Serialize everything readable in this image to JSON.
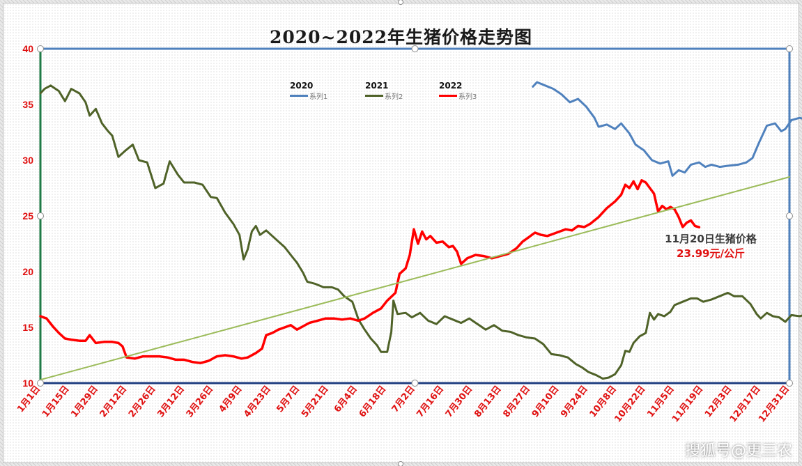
{
  "chart_data": {
    "type": "line",
    "title": "2020~2022年生猪价格走势图",
    "ylim": [
      10,
      40
    ],
    "y_ticks": [
      10,
      15,
      20,
      25,
      30,
      35,
      40
    ],
    "x_ticks": [
      "1月1日",
      "1月15日",
      "1月29日",
      "2月12日",
      "2月26日",
      "3月12日",
      "3月26日",
      "4月9日",
      "4月23日",
      "5月7日",
      "5月21日",
      "6月4日",
      "6月18日",
      "7月2日",
      "7月16日",
      "7月30日",
      "8月13日",
      "8月27日",
      "9月10日",
      "9月24日",
      "10月8日",
      "10月22日",
      "11月5日",
      "11月19日",
      "12月3日",
      "12月17日",
      "12月31日"
    ],
    "x_unit": "day_of_year",
    "legend_position": "top-center",
    "series": [
      {
        "name": "系列1",
        "legend_label": "2020",
        "color": "#4f81bd",
        "points": [
          [
            240,
            36.6
          ],
          [
            242,
            37.0
          ],
          [
            246,
            36.7
          ],
          [
            250,
            36.4
          ],
          [
            254,
            35.9
          ],
          [
            258,
            35.2
          ],
          [
            262,
            35.5
          ],
          [
            266,
            34.8
          ],
          [
            270,
            33.8
          ],
          [
            272,
            33.0
          ],
          [
            276,
            33.2
          ],
          [
            280,
            32.8
          ],
          [
            283,
            33.3
          ],
          [
            287,
            32.4
          ],
          [
            290,
            31.4
          ],
          [
            294,
            30.9
          ],
          [
            298,
            30.0
          ],
          [
            302,
            29.7
          ],
          [
            306,
            29.9
          ],
          [
            308,
            28.6
          ],
          [
            311,
            29.1
          ],
          [
            314,
            28.9
          ],
          [
            317,
            29.6
          ],
          [
            321,
            29.8
          ],
          [
            324,
            29.4
          ],
          [
            327,
            29.6
          ],
          [
            331,
            29.4
          ],
          [
            335,
            29.5
          ],
          [
            340,
            29.6
          ],
          [
            344,
            29.8
          ],
          [
            347,
            30.2
          ],
          [
            350,
            31.5
          ],
          [
            354,
            33.1
          ],
          [
            358,
            33.3
          ],
          [
            361,
            32.6
          ],
          [
            363,
            32.8
          ],
          [
            366,
            33.6
          ],
          [
            370,
            33.8
          ],
          [
            374,
            33.6
          ],
          [
            378,
            34.2
          ],
          [
            381,
            35.1
          ],
          [
            384,
            35.5
          ],
          [
            386,
            35.3
          ]
        ]
      },
      {
        "name": "系列2",
        "legend_label": "2021",
        "color": "#4f6228",
        "points": [
          [
            0,
            36.0
          ],
          [
            2,
            36.4
          ],
          [
            5,
            36.7
          ],
          [
            9,
            36.2
          ],
          [
            12,
            35.3
          ],
          [
            15,
            36.4
          ],
          [
            19,
            36.0
          ],
          [
            22,
            35.2
          ],
          [
            24,
            34.0
          ],
          [
            27,
            34.6
          ],
          [
            30,
            33.3
          ],
          [
            33,
            32.6
          ],
          [
            35,
            32.2
          ],
          [
            38,
            30.3
          ],
          [
            41,
            30.8
          ],
          [
            45,
            31.4
          ],
          [
            48,
            30.0
          ],
          [
            52,
            29.8
          ],
          [
            56,
            27.5
          ],
          [
            60,
            27.9
          ],
          [
            63,
            29.9
          ],
          [
            67,
            28.7
          ],
          [
            70,
            28.0
          ],
          [
            75,
            28.0
          ],
          [
            79,
            27.8
          ],
          [
            83,
            26.7
          ],
          [
            86,
            26.6
          ],
          [
            90,
            25.3
          ],
          [
            94,
            24.3
          ],
          [
            97,
            23.3
          ],
          [
            99,
            21.1
          ],
          [
            101,
            22.0
          ],
          [
            103,
            23.6
          ],
          [
            105,
            24.1
          ],
          [
            107,
            23.3
          ],
          [
            110,
            23.7
          ],
          [
            113,
            23.2
          ],
          [
            116,
            22.7
          ],
          [
            119,
            22.2
          ],
          [
            122,
            21.5
          ],
          [
            125,
            20.8
          ],
          [
            128,
            19.9
          ],
          [
            130,
            19.1
          ],
          [
            134,
            18.9
          ],
          [
            138,
            18.6
          ],
          [
            142,
            18.6
          ],
          [
            145,
            18.4
          ],
          [
            148,
            17.8
          ],
          [
            152,
            17.3
          ],
          [
            155,
            15.7
          ],
          [
            158,
            14.8
          ],
          [
            161,
            14.0
          ],
          [
            164,
            13.4
          ],
          [
            166,
            12.8
          ],
          [
            169,
            12.8
          ],
          [
            171,
            14.6
          ],
          [
            172,
            17.4
          ],
          [
            174,
            16.2
          ],
          [
            178,
            16.3
          ],
          [
            181,
            15.9
          ],
          [
            185,
            16.3
          ],
          [
            189,
            15.6
          ],
          [
            193,
            15.3
          ],
          [
            197,
            16.0
          ],
          [
            201,
            15.7
          ],
          [
            205,
            15.4
          ],
          [
            209,
            15.8
          ],
          [
            213,
            15.3
          ],
          [
            217,
            14.8
          ],
          [
            221,
            15.2
          ],
          [
            225,
            14.7
          ],
          [
            229,
            14.6
          ],
          [
            233,
            14.3
          ],
          [
            237,
            14.1
          ],
          [
            241,
            14.0
          ],
          [
            245,
            13.5
          ],
          [
            249,
            12.6
          ],
          [
            253,
            12.5
          ],
          [
            257,
            12.3
          ],
          [
            261,
            11.7
          ],
          [
            264,
            11.4
          ],
          [
            267,
            11.0
          ],
          [
            271,
            10.7
          ],
          [
            274,
            10.4
          ],
          [
            277,
            10.5
          ],
          [
            280,
            10.8
          ],
          [
            283,
            11.6
          ],
          [
            285,
            12.9
          ],
          [
            287,
            12.8
          ],
          [
            289,
            13.6
          ],
          [
            292,
            14.2
          ],
          [
            295,
            14.5
          ],
          [
            297,
            16.3
          ],
          [
            299,
            15.7
          ],
          [
            301,
            16.2
          ],
          [
            304,
            16.0
          ],
          [
            307,
            16.4
          ],
          [
            309,
            17.0
          ],
          [
            313,
            17.3
          ],
          [
            317,
            17.6
          ],
          [
            320,
            17.6
          ],
          [
            323,
            17.3
          ],
          [
            327,
            17.5
          ],
          [
            331,
            17.8
          ],
          [
            335,
            18.1
          ],
          [
            338,
            17.8
          ],
          [
            342,
            17.8
          ],
          [
            346,
            17.1
          ],
          [
            349,
            16.2
          ],
          [
            351,
            15.8
          ],
          [
            354,
            16.3
          ],
          [
            357,
            16.0
          ],
          [
            360,
            15.9
          ],
          [
            363,
            15.5
          ],
          [
            366,
            16.1
          ],
          [
            370,
            16.0
          ],
          [
            372,
            16.1
          ]
        ]
      },
      {
        "name": "系列3",
        "legend_label": "2022",
        "color": "#ff0000",
        "points": [
          [
            0,
            16.0
          ],
          [
            3,
            15.8
          ],
          [
            6,
            15.1
          ],
          [
            9,
            14.5
          ],
          [
            12,
            14.0
          ],
          [
            15,
            13.9
          ],
          [
            19,
            13.8
          ],
          [
            22,
            13.8
          ],
          [
            24,
            14.3
          ],
          [
            27,
            13.6
          ],
          [
            31,
            13.7
          ],
          [
            35,
            13.7
          ],
          [
            38,
            13.6
          ],
          [
            40,
            13.3
          ],
          [
            42,
            12.3
          ],
          [
            46,
            12.2
          ],
          [
            50,
            12.4
          ],
          [
            54,
            12.4
          ],
          [
            58,
            12.4
          ],
          [
            62,
            12.3
          ],
          [
            66,
            12.1
          ],
          [
            70,
            12.1
          ],
          [
            74,
            11.9
          ],
          [
            78,
            11.8
          ],
          [
            82,
            12.0
          ],
          [
            86,
            12.4
          ],
          [
            90,
            12.5
          ],
          [
            94,
            12.4
          ],
          [
            98,
            12.2
          ],
          [
            101,
            12.3
          ],
          [
            105,
            12.7
          ],
          [
            108,
            13.1
          ],
          [
            110,
            14.3
          ],
          [
            113,
            14.5
          ],
          [
            116,
            14.8
          ],
          [
            119,
            15.0
          ],
          [
            122,
            15.2
          ],
          [
            125,
            14.8
          ],
          [
            128,
            15.1
          ],
          [
            131,
            15.4
          ],
          [
            135,
            15.6
          ],
          [
            139,
            15.8
          ],
          [
            143,
            15.8
          ],
          [
            147,
            15.7
          ],
          [
            151,
            15.8
          ],
          [
            155,
            15.6
          ],
          [
            158,
            15.8
          ],
          [
            162,
            16.3
          ],
          [
            166,
            16.7
          ],
          [
            169,
            17.4
          ],
          [
            173,
            18.1
          ],
          [
            175,
            19.8
          ],
          [
            178,
            20.3
          ],
          [
            180,
            21.5
          ],
          [
            182,
            23.8
          ],
          [
            184,
            22.5
          ],
          [
            186,
            23.6
          ],
          [
            188,
            22.9
          ],
          [
            190,
            23.2
          ],
          [
            193,
            22.6
          ],
          [
            196,
            22.7
          ],
          [
            199,
            22.2
          ],
          [
            201,
            22.3
          ],
          [
            203,
            21.8
          ],
          [
            205,
            20.7
          ],
          [
            208,
            21.2
          ],
          [
            212,
            21.5
          ],
          [
            216,
            21.4
          ],
          [
            220,
            21.2
          ],
          [
            224,
            21.4
          ],
          [
            228,
            21.6
          ],
          [
            232,
            22.1
          ],
          [
            235,
            22.7
          ],
          [
            238,
            23.1
          ],
          [
            241,
            23.5
          ],
          [
            244,
            23.3
          ],
          [
            247,
            23.2
          ],
          [
            250,
            23.4
          ],
          [
            253,
            23.6
          ],
          [
            256,
            23.8
          ],
          [
            259,
            23.7
          ],
          [
            262,
            24.1
          ],
          [
            265,
            24.0
          ],
          [
            268,
            24.3
          ],
          [
            272,
            24.9
          ],
          [
            276,
            25.7
          ],
          [
            280,
            26.3
          ],
          [
            283,
            26.9
          ],
          [
            285,
            27.8
          ],
          [
            287,
            27.5
          ],
          [
            289,
            28.1
          ],
          [
            291,
            27.4
          ],
          [
            293,
            28.2
          ],
          [
            295,
            28.0
          ],
          [
            297,
            27.5
          ],
          [
            299,
            27.0
          ],
          [
            301,
            25.4
          ],
          [
            303,
            25.9
          ],
          [
            305,
            25.6
          ],
          [
            307,
            25.8
          ],
          [
            309,
            25.6
          ],
          [
            311,
            24.9
          ],
          [
            313,
            24.0
          ],
          [
            315,
            24.4
          ],
          [
            317,
            24.6
          ],
          [
            319,
            24.1
          ],
          [
            321,
            23.99
          ]
        ]
      },
      {
        "name": "",
        "color": "#9bbb59",
        "points": [
          [
            0,
            10.3
          ],
          [
            365,
            28.5
          ]
        ]
      }
    ]
  },
  "annotation": {
    "label": "11月20日生猪价格",
    "value": "23.99元/公斤"
  },
  "watermark": "搜狐号@更三农",
  "colors": {
    "tick_label": "#e01010",
    "plot_border": "#4f81bd",
    "y_axis": "#1f7a46",
    "x_axis": "#1f3e80"
  }
}
